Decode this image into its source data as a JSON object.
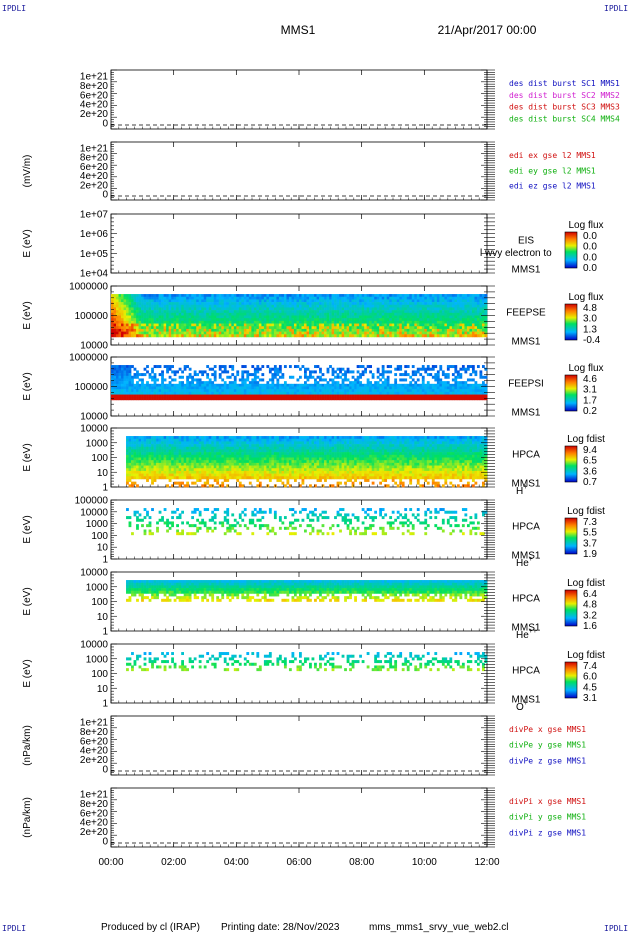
{
  "header": {
    "corner_label": "IPDLI",
    "spacecraft": "MMS1",
    "date": "21/Apr/2017 00:00"
  },
  "footer": {
    "produced_by": "Produced by cl (IRAP)",
    "printing_date": "Printing date: 28/Nov/2023",
    "file": "mms_mms1_srvy_vue_web2.cl"
  },
  "chart_data": [
    {
      "type": "line",
      "panel": "des_dist",
      "ylabel": "",
      "ticks": [
        "1e+21",
        "8e+20",
        "6e+20",
        "4e+20",
        "2e+20",
        "0"
      ],
      "ylim": [
        0,
        1e+21
      ],
      "legend": [
        {
          "text": "des dist burst SC1 MMS1",
          "color": "#1010c0"
        },
        {
          "text": "des dist burst SC2 MMS2",
          "color": "#d020d0"
        },
        {
          "text": "des dist burst SC3 MMS3",
          "color": "#d01010"
        },
        {
          "text": "des dist burst SC4 MMS4",
          "color": "#10b010"
        }
      ]
    },
    {
      "type": "line",
      "panel": "edi",
      "ylabel": "(mV/m)",
      "ticks": [
        "1e+21",
        "8e+20",
        "6e+20",
        "4e+20",
        "2e+20",
        "0"
      ],
      "ylim": [
        0,
        1e+21
      ],
      "legend": [
        {
          "text": "edi ex gse l2 MMS1",
          "color": "#d01010"
        },
        {
          "text": "edi ey gse l2 MMS1",
          "color": "#10b010"
        },
        {
          "text": "edi ez gse l2 MMS1",
          "color": "#1010c0"
        }
      ]
    },
    {
      "type": "heatmap",
      "panel": "EIS",
      "ylabel": "E (eV)",
      "ticks": [
        "1e+07",
        "1e+06",
        "1e+05",
        "1e+04"
      ],
      "yscale": "log",
      "instrument": [
        "EIS",
        "MMS1"
      ],
      "overlap_text": "l wvy electron to",
      "colorbar": {
        "title": "Log flux",
        "ticks": [
          "0.0",
          "0.0",
          "0.0",
          "0.0"
        ]
      },
      "coverage": "none"
    },
    {
      "type": "heatmap",
      "panel": "FEEPSE",
      "ylabel": "E (eV)",
      "ticks": [
        "1000000",
        "100000",
        "10000"
      ],
      "yscale": "log",
      "instrument": [
        "FEEPSE",
        "MMS1"
      ],
      "colorbar": {
        "title": "Log flux",
        "ticks": [
          "4.8",
          "3.0",
          "1.3",
          "-0.4"
        ]
      },
      "coverage": "full"
    },
    {
      "type": "heatmap",
      "panel": "FEEPSI",
      "ylabel": "E (eV)",
      "ticks": [
        "1000000",
        "100000",
        "10000"
      ],
      "yscale": "log",
      "instrument": [
        "FEEPSI",
        "MMS1"
      ],
      "colorbar": {
        "title": "Log flux",
        "ticks": [
          "4.6",
          "3.1",
          "1.7",
          "0.2"
        ]
      },
      "coverage": "full"
    },
    {
      "type": "heatmap",
      "panel": "HPCA_H",
      "ylabel": "E (eV)",
      "ticks": [
        "10000",
        "1000",
        "100",
        "10",
        "1"
      ],
      "yscale": "log",
      "instrument": [
        "HPCA",
        "MMS1"
      ],
      "species": {
        "base": "H",
        "sup": "+"
      },
      "colorbar": {
        "title": "Log fdist",
        "ticks": [
          "9.4",
          "6.5",
          "3.6",
          "0.7"
        ]
      },
      "coverage": "dense"
    },
    {
      "type": "heatmap",
      "panel": "HPCA_He",
      "ylabel": "E (eV)",
      "ticks": [
        "100000",
        "10000",
        "1000",
        "100",
        "10",
        "1"
      ],
      "yscale": "log",
      "instrument": [
        "HPCA",
        "MMS1"
      ],
      "species": {
        "base": "He",
        "sup": "+"
      },
      "colorbar": {
        "title": "Log fdist",
        "ticks": [
          "7.3",
          "5.5",
          "3.7",
          "1.9"
        ]
      },
      "coverage": "sparse"
    },
    {
      "type": "heatmap",
      "panel": "HPCA_He2",
      "ylabel": "E (eV)",
      "ticks": [
        "10000",
        "1000",
        "100",
        "10",
        "1"
      ],
      "yscale": "log",
      "instrument": [
        "HPCA",
        "MMS1"
      ],
      "species": {
        "base": "He",
        "sup": "++"
      },
      "colorbar": {
        "title": "Log fdist",
        "ticks": [
          "6.4",
          "4.8",
          "3.2",
          "1.6"
        ]
      },
      "coverage": "medium"
    },
    {
      "type": "heatmap",
      "panel": "HPCA_O",
      "ylabel": "E (eV)",
      "ticks": [
        "10000",
        "1000",
        "100",
        "10",
        "1"
      ],
      "yscale": "log",
      "instrument": [
        "HPCA",
        "MMS1"
      ],
      "species": {
        "base": "O",
        "sup": "+"
      },
      "colorbar": {
        "title": "Log fdist",
        "ticks": [
          "7.4",
          "6.0",
          "4.5",
          "3.1"
        ]
      },
      "coverage": "sparse"
    },
    {
      "type": "line",
      "panel": "divPe",
      "ylabel": "(nPa/km)",
      "ticks": [
        "1e+21",
        "8e+20",
        "6e+20",
        "4e+20",
        "2e+20",
        "0"
      ],
      "ylim": [
        0,
        1e+21
      ],
      "legend": [
        {
          "text": "divPe x gse MMS1",
          "color": "#d01010"
        },
        {
          "text": "divPe y gse MMS1",
          "color": "#10b010"
        },
        {
          "text": "divPe z gse MMS1",
          "color": "#1010c0"
        }
      ]
    },
    {
      "type": "line",
      "panel": "divPi",
      "ylabel": "(nPa/km)",
      "ticks": [
        "1e+21",
        "8e+20",
        "6e+20",
        "4e+20",
        "2e+20",
        "0"
      ],
      "ylim": [
        0,
        1e+21
      ],
      "legend": [
        {
          "text": "divPi x gse MMS1",
          "color": "#d01010"
        },
        {
          "text": "divPi y gse MMS1",
          "color": "#10b010"
        },
        {
          "text": "divPi z gse MMS1",
          "color": "#1010c0"
        }
      ]
    }
  ],
  "time_axis": {
    "ticks": [
      "00:00",
      "02:00",
      "04:00",
      "06:00",
      "08:00",
      "10:00",
      "12:00"
    ],
    "range_hours": [
      0,
      12
    ]
  }
}
